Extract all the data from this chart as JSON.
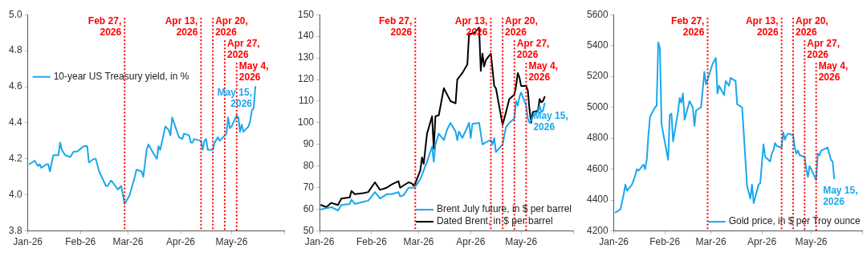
{
  "chart_data": [
    {
      "type": "line",
      "legend": "top left",
      "grid": false,
      "xlim": [
        "2026-01-01",
        "2026-06-01"
      ],
      "xticks": [
        {
          "value": "2026-01-01",
          "label": "Jan-26"
        },
        {
          "value": "2026-02-01",
          "label": "Feb-26"
        },
        {
          "value": "2026-03-01",
          "label": "Mar-26"
        },
        {
          "value": "2026-04-01",
          "label": "Apr-26"
        },
        {
          "value": "2026-05-01",
          "label": "May-26"
        },
        {
          "value": "2026-06-01",
          "label": null
        }
      ],
      "ylim": [
        3.8,
        5.0
      ],
      "yticks": [
        3.8,
        {
          "value": 4.0,
          "label": "4.0"
        },
        4.2,
        4.4,
        4.6,
        4.8,
        {
          "value": 5.0,
          "label": "5.0"
        }
      ],
      "series": [
        {
          "name": "10-year US Treasury yield, in %",
          "color": "#1aa7ec",
          "x": [
            "2026-01-02",
            "2026-01-05",
            "2026-01-07",
            "2026-01-08",
            "2026-01-09",
            "2026-01-12",
            "2026-01-13",
            "2026-01-14",
            "2026-01-16",
            "2026-01-19",
            "2026-01-20",
            "2026-01-21",
            "2026-01-23",
            "2026-01-26",
            "2026-01-28",
            "2026-01-30",
            "2026-02-03",
            "2026-02-05",
            "2026-02-06",
            "2026-02-09",
            "2026-02-10",
            "2026-02-12",
            "2026-02-16",
            "2026-02-17",
            "2026-02-19",
            "2026-02-20",
            "2026-02-23",
            "2026-02-25",
            "2026-02-27",
            "2026-03-02",
            "2026-03-05",
            "2026-03-06",
            "2026-03-09",
            "2026-03-10",
            "2026-03-12",
            "2026-03-13",
            "2026-03-16",
            "2026-03-18",
            "2026-03-19",
            "2026-03-20",
            "2026-03-23",
            "2026-03-25",
            "2026-03-26",
            "2026-03-27",
            "2026-03-31",
            "2026-04-02",
            "2026-04-03",
            "2026-04-06",
            "2026-04-07",
            "2026-04-08",
            "2026-04-09",
            "2026-04-13",
            "2026-04-14",
            "2026-04-15",
            "2026-04-16",
            "2026-04-17",
            "2026-04-20",
            "2026-04-21",
            "2026-04-23",
            "2026-04-24",
            "2026-04-27",
            "2026-04-28",
            "2026-04-29",
            "2026-04-30",
            "2026-05-01",
            "2026-05-04",
            "2026-05-05",
            "2026-05-06",
            "2026-05-07",
            "2026-05-08",
            "2026-05-11",
            "2026-05-12",
            "2026-05-13",
            "2026-05-14",
            "2026-05-15"
          ],
          "values": [
            4.17,
            4.19,
            4.16,
            4.17,
            4.15,
            4.17,
            4.17,
            4.13,
            4.22,
            4.22,
            4.29,
            4.25,
            4.22,
            4.21,
            4.24,
            4.24,
            4.27,
            4.27,
            4.18,
            4.2,
            4.2,
            4.13,
            4.05,
            4.05,
            4.08,
            4.07,
            4.03,
            4.05,
            3.95,
            4.0,
            4.1,
            4.14,
            4.13,
            4.1,
            4.25,
            4.28,
            4.23,
            4.2,
            4.27,
            4.25,
            4.38,
            4.36,
            4.33,
            4.43,
            4.32,
            4.31,
            4.34,
            4.33,
            4.29,
            4.29,
            4.31,
            4.3,
            4.25,
            4.3,
            4.31,
            4.25,
            4.25,
            4.29,
            4.32,
            4.3,
            4.33,
            4.34,
            4.43,
            4.37,
            4.38,
            4.44,
            4.43,
            4.35,
            4.39,
            4.35,
            4.38,
            4.41,
            4.47,
            4.48,
            4.6
          ]
        }
      ],
      "ref_lines": [
        {
          "axis": "x",
          "value": "2026-02-27",
          "label": "Feb 27, 2026",
          "color": "#ff0000",
          "line_style": "dotted"
        },
        {
          "axis": "x",
          "value": "2026-04-13",
          "label": "Apr 13, 2026",
          "color": "#ff0000",
          "line_style": "dotted"
        },
        {
          "axis": "x",
          "value": "2026-04-20",
          "label": "Apr 20, 2026",
          "color": "#ff0000",
          "line_style": "dotted"
        },
        {
          "axis": "x",
          "value": "2026-04-27",
          "label": "Apr 27, 2026",
          "color": "#ff0000",
          "line_style": "dotted"
        },
        {
          "axis": "x",
          "value": "2026-05-04",
          "label": "May 4, 2026",
          "color": "#ff0000",
          "line_style": "dotted"
        }
      ],
      "annotations": [
        {
          "text": "May 15, 2026",
          "x": "2026-05-15",
          "y": 4.6
        }
      ]
    },
    {
      "type": "line",
      "legend": "bottom right",
      "grid": false,
      "xlim": [
        "2026-01-01",
        "2026-06-01"
      ],
      "xticks": [
        {
          "value": "2026-01-01",
          "label": "Jan-26"
        },
        {
          "value": "2026-02-01",
          "label": "Feb-26"
        },
        {
          "value": "2026-03-01",
          "label": "Mar-26"
        },
        {
          "value": "2026-04-01",
          "label": "Apr-26"
        },
        {
          "value": "2026-05-01",
          "label": "May-26"
        },
        {
          "value": "2026-06-01",
          "label": null
        }
      ],
      "ylim": [
        50,
        150
      ],
      "yticks": [
        50,
        60,
        70,
        80,
        90,
        100,
        110,
        120,
        130,
        140,
        150
      ],
      "series": [
        {
          "name": "Brent July future, in $ per barrel",
          "color": "#1aa7ec",
          "x": [
            "2026-01-02",
            "2026-01-05",
            "2026-01-08",
            "2026-01-12",
            "2026-01-14",
            "2026-01-19",
            "2026-01-20",
            "2026-01-22",
            "2026-01-27",
            "2026-01-30",
            "2026-02-03",
            "2026-02-06",
            "2026-02-10",
            "2026-02-13",
            "2026-02-17",
            "2026-02-18",
            "2026-02-20",
            "2026-02-23",
            "2026-02-26",
            "2026-02-27",
            "2026-03-02",
            "2026-03-03",
            "2026-03-06",
            "2026-03-09",
            "2026-03-10",
            "2026-03-11",
            "2026-03-13",
            "2026-03-16",
            "2026-03-18",
            "2026-03-20",
            "2026-03-23",
            "2026-03-24",
            "2026-03-25",
            "2026-03-27",
            "2026-03-30",
            "2026-03-31",
            "2026-04-01",
            "2026-04-02",
            "2026-04-06",
            "2026-04-08",
            "2026-04-10",
            "2026-04-13",
            "2026-04-14",
            "2026-04-15",
            "2026-04-16",
            "2026-04-20",
            "2026-04-22",
            "2026-04-24",
            "2026-04-27",
            "2026-04-28",
            "2026-04-29",
            "2026-04-30",
            "2026-05-01",
            "2026-05-04",
            "2026-05-05",
            "2026-05-06",
            "2026-05-07",
            "2026-05-08",
            "2026-05-11",
            "2026-05-12",
            "2026-05-13",
            "2026-05-14",
            "2026-05-15"
          ],
          "values": [
            60,
            60.5,
            61,
            59.5,
            62,
            62.5,
            64.5,
            62.5,
            63.5,
            64,
            68,
            65,
            67,
            67,
            68,
            66,
            66.5,
            70,
            70,
            70.5,
            74,
            76,
            82,
            89,
            82,
            90,
            95,
            92,
            97,
            100,
            96,
            92,
            96,
            93,
            98,
            100,
            93,
            99.5,
            100,
            90,
            91,
            92,
            90,
            93,
            86.5,
            90,
            98,
            100,
            102,
            110,
            108,
            112,
            114,
            108,
            102,
            100,
            101,
            103,
            105,
            108,
            105,
            105.5,
            109
          ]
        },
        {
          "name": "Dated Brent, in $ per barrel",
          "color": "#000000",
          "x": [
            "2026-01-02",
            "2026-01-05",
            "2026-01-08",
            "2026-01-12",
            "2026-01-14",
            "2026-01-19",
            "2026-01-20",
            "2026-01-22",
            "2026-01-27",
            "2026-01-30",
            "2026-02-03",
            "2026-02-06",
            "2026-02-10",
            "2026-02-13",
            "2026-02-17",
            "2026-02-18",
            "2026-02-20",
            "2026-02-23",
            "2026-02-25",
            "2026-02-26",
            "2026-02-27",
            "2026-03-02",
            "2026-03-03",
            "2026-03-04",
            "2026-03-06",
            "2026-03-09",
            "2026-03-10",
            "2026-03-11",
            "2026-03-13",
            "2026-03-16",
            "2026-03-18",
            "2026-03-20",
            "2026-03-23",
            "2026-03-24",
            "2026-03-27",
            "2026-03-30",
            "2026-03-31",
            "2026-04-03",
            "2026-04-06",
            "2026-04-07",
            "2026-04-08",
            "2026-04-09",
            "2026-04-10",
            "2026-04-13",
            "2026-04-15",
            "2026-04-16",
            "2026-04-20",
            "2026-04-22",
            "2026-04-24",
            "2026-04-27",
            "2026-04-28",
            "2026-04-29",
            "2026-04-30",
            "2026-05-01",
            "2026-05-04",
            "2026-05-05",
            "2026-05-06",
            "2026-05-07",
            "2026-05-08",
            "2026-05-11",
            "2026-05-12",
            "2026-05-13",
            "2026-05-14",
            "2026-05-15"
          ],
          "values": [
            62,
            61,
            63,
            62,
            65,
            65.5,
            68.5,
            67,
            67.5,
            68,
            72.5,
            69,
            70,
            71.5,
            73,
            70,
            71,
            72.5,
            72,
            71,
            72,
            78,
            84,
            81,
            95,
            103,
            88,
            103,
            103.5,
            116,
            113,
            110,
            109,
            120,
            123,
            127,
            141,
            141.5,
            144,
            124,
            132,
            126,
            129,
            132,
            117,
            116,
            99,
            105,
            111,
            113,
            117,
            123,
            121,
            117,
            117,
            115,
            106,
            100,
            105,
            105.5,
            111,
            109.5,
            110,
            112
          ]
        }
      ],
      "ref_lines": [
        {
          "axis": "x",
          "value": "2026-02-27",
          "label": "Feb 27, 2026",
          "color": "#ff0000",
          "line_style": "dotted"
        },
        {
          "axis": "x",
          "value": "2026-04-13",
          "label": "Apr 13, 2026",
          "color": "#ff0000",
          "line_style": "dotted"
        },
        {
          "axis": "x",
          "value": "2026-04-20",
          "label": "Apr 20, 2026",
          "color": "#ff0000",
          "line_style": "dotted"
        },
        {
          "axis": "x",
          "value": "2026-04-27",
          "label": "Apr 27, 2026",
          "color": "#ff0000",
          "line_style": "dotted"
        },
        {
          "axis": "x",
          "value": "2026-05-04",
          "label": "May 4, 2026",
          "color": "#ff0000",
          "line_style": "dotted"
        }
      ],
      "annotations": [
        {
          "text": "May 15, 2026",
          "x": "2026-05-15",
          "y": 109
        }
      ]
    },
    {
      "type": "line",
      "legend": "bottom right",
      "grid": false,
      "xlim": [
        "2026-01-01",
        "2026-06-01"
      ],
      "xticks": [
        {
          "value": "2026-01-01",
          "label": "Jan-26"
        },
        {
          "value": "2026-02-01",
          "label": "Feb-26"
        },
        {
          "value": "2026-03-01",
          "label": "Mar-26"
        },
        {
          "value": "2026-04-01",
          "label": "Apr-26"
        },
        {
          "value": "2026-05-01",
          "label": "May-26"
        },
        {
          "value": "2026-06-01",
          "label": null
        }
      ],
      "ylim": [
        4200,
        5600
      ],
      "yticks": [
        4200,
        4400,
        4600,
        4800,
        5000,
        5200,
        5400,
        5600
      ],
      "series": [
        {
          "name": "Gold price, in $ per Troy ounce",
          "color": "#1aa7ec",
          "x": [
            "2026-01-02",
            "2026-01-05",
            "2026-01-07",
            "2026-01-08",
            "2026-01-09",
            "2026-01-12",
            "2026-01-14",
            "2026-01-15",
            "2026-01-16",
            "2026-01-19",
            "2026-01-20",
            "2026-01-21",
            "2026-01-22",
            "2026-01-23",
            "2026-01-26",
            "2026-01-27",
            "2026-01-28",
            "2026-01-29",
            "2026-01-30",
            "2026-02-03",
            "2026-02-04",
            "2026-02-05",
            "2026-02-06",
            "2026-02-09",
            "2026-02-10",
            "2026-02-11",
            "2026-02-12",
            "2026-02-13",
            "2026-02-16",
            "2026-02-18",
            "2026-02-19",
            "2026-02-20",
            "2026-02-23",
            "2026-02-24",
            "2026-02-25",
            "2026-02-26",
            "2026-02-27",
            "2026-03-02",
            "2026-03-04",
            "2026-03-05",
            "2026-03-06",
            "2026-03-09",
            "2026-03-10",
            "2026-03-12",
            "2026-03-13",
            "2026-03-16",
            "2026-03-17",
            "2026-03-20",
            "2026-03-23",
            "2026-03-25",
            "2026-03-26",
            "2026-03-27",
            "2026-03-30",
            "2026-03-31",
            "2026-04-02",
            "2026-04-03",
            "2026-04-06",
            "2026-04-07",
            "2026-04-08",
            "2026-04-09",
            "2026-04-10",
            "2026-04-13",
            "2026-04-14",
            "2026-04-15",
            "2026-04-16",
            "2026-04-17",
            "2026-04-20",
            "2026-04-21",
            "2026-04-22",
            "2026-04-23",
            "2026-04-24",
            "2026-04-27",
            "2026-04-28",
            "2026-04-29",
            "2026-04-30",
            "2026-05-01",
            "2026-05-04",
            "2026-05-05",
            "2026-05-06",
            "2026-05-07",
            "2026-05-11",
            "2026-05-13",
            "2026-05-14",
            "2026-05-15"
          ],
          "values": [
            4320,
            4340,
            4440,
            4500,
            4460,
            4500,
            4560,
            4600,
            4590,
            4630,
            4600,
            4660,
            4820,
            4940,
            5000,
            5010,
            5420,
            5380,
            4890,
            4660,
            4950,
            4960,
            4780,
            4970,
            5060,
            5030,
            5090,
            4920,
            5040,
            5000,
            4880,
            4980,
            5000,
            5110,
            5230,
            5150,
            5180,
            5280,
            5320,
            5090,
            5140,
            5080,
            5170,
            5140,
            5190,
            5170,
            5020,
            5000,
            4490,
            4410,
            4500,
            4380,
            4500,
            4510,
            4760,
            4680,
            4650,
            4700,
            4720,
            4770,
            4750,
            4740,
            4840,
            4790,
            4820,
            4830,
            4820,
            4740,
            4700,
            4720,
            4690,
            4680,
            4600,
            4550,
            4620,
            4600,
            4530,
            4700,
            4690,
            4720,
            4740,
            4660,
            4650,
            4540
          ]
        }
      ],
      "ref_lines": [
        {
          "axis": "x",
          "value": "2026-02-27",
          "label": "Feb 27, 2026",
          "color": "#ff0000",
          "line_style": "dotted"
        },
        {
          "axis": "x",
          "value": "2026-04-13",
          "label": "Apr 13, 2026",
          "color": "#ff0000",
          "line_style": "dotted"
        },
        {
          "axis": "x",
          "value": "2026-04-20",
          "label": "Apr 20, 2026",
          "color": "#ff0000",
          "line_style": "dotted"
        },
        {
          "axis": "x",
          "value": "2026-04-27",
          "label": "Apr 27, 2026",
          "color": "#ff0000",
          "line_style": "dotted"
        },
        {
          "axis": "x",
          "value": "2026-05-04",
          "label": "May 4, 2026",
          "color": "#ff0000",
          "line_style": "dotted"
        }
      ],
      "annotations": [
        {
          "text": "May 15, 2026",
          "x": "2026-05-15",
          "y": 4540
        }
      ]
    }
  ]
}
